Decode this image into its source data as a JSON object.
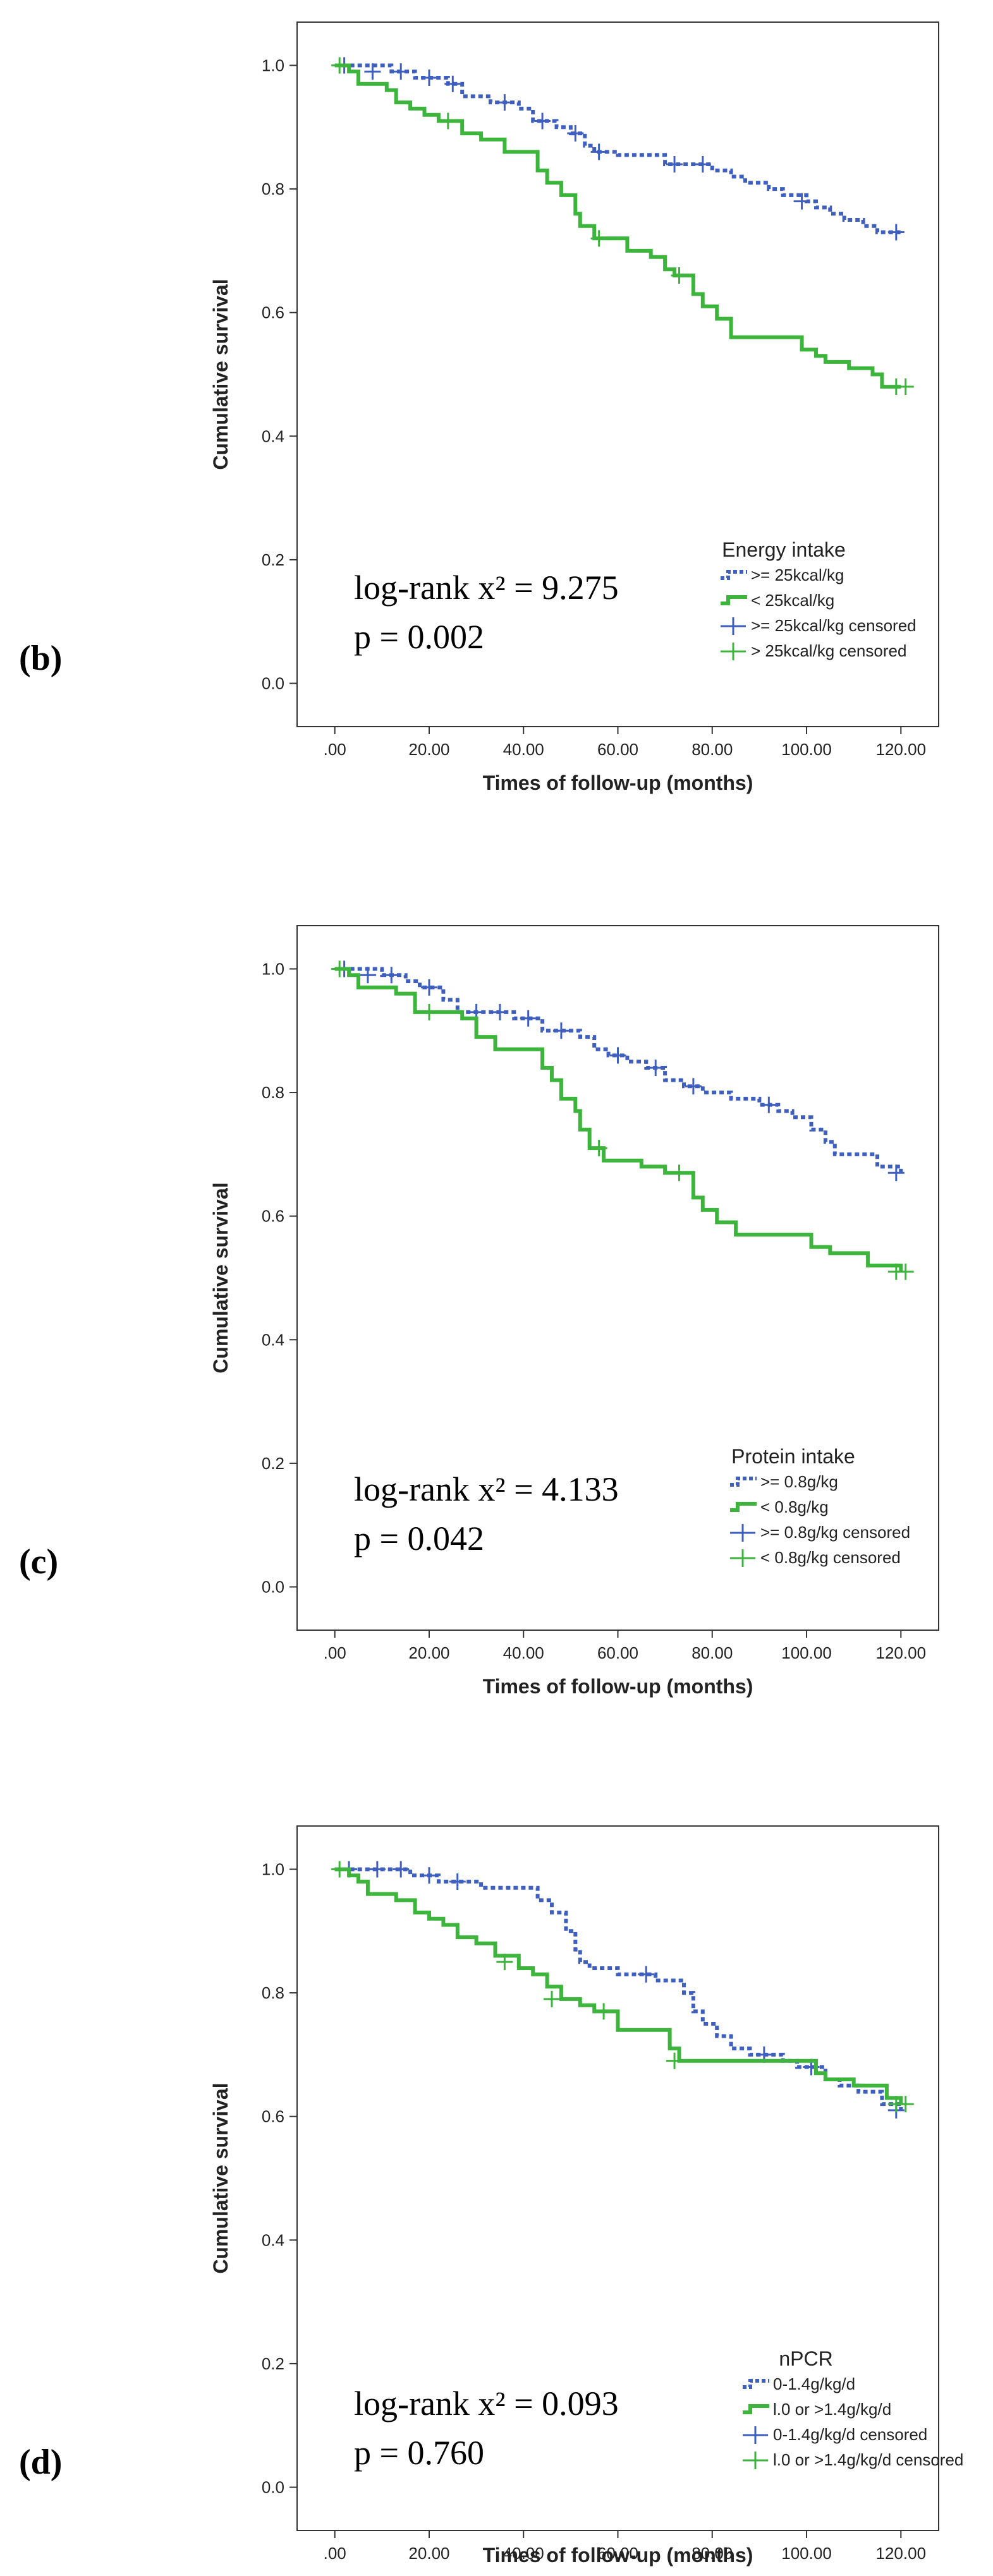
{
  "chart_data": [
    {
      "type": "line",
      "panel_label": "(b)",
      "xlabel": "Times of follow-up (months)",
      "ylabel": "Cumulative survival",
      "xlim": [
        -8,
        128
      ],
      "ylim": [
        -0.07,
        1.07
      ],
      "x_ticks": [
        0,
        20,
        40,
        60,
        80,
        100,
        120
      ],
      "x_tick_labels": [
        ".00",
        "20.00",
        "40.00",
        "60.00",
        "80.00",
        "100.00",
        "120.00"
      ],
      "y_ticks": [
        0,
        0.2,
        0.4,
        0.6,
        0.8,
        1.0
      ],
      "y_tick_labels": [
        "0.0",
        "0.2",
        "0.4",
        "0.6",
        "0.8",
        "1.0"
      ],
      "legend_title": "Energy intake",
      "legend": [
        ">= 25kcal/kg",
        "<  25kcal/kg",
        ">= 25kcal/kg censored",
        ">  25kcal/kg censored"
      ],
      "stat_line": "log-rank x² = 9.275",
      "p_line": "p = 0.002",
      "series": [
        {
          "name": ">= 25kcal/kg",
          "color": "#3f5fbf",
          "style": "dotted",
          "steps": [
            [
              0,
              1.0
            ],
            [
              12,
              0.99
            ],
            [
              17,
              0.98
            ],
            [
              24,
              0.97
            ],
            [
              27,
              0.95
            ],
            [
              33,
              0.94
            ],
            [
              39,
              0.93
            ],
            [
              42,
              0.91
            ],
            [
              47,
              0.9
            ],
            [
              50,
              0.89
            ],
            [
              53,
              0.87
            ],
            [
              55,
              0.86
            ],
            [
              60,
              0.855
            ],
            [
              70,
              0.84
            ],
            [
              80,
              0.83
            ],
            [
              84,
              0.82
            ],
            [
              87,
              0.81
            ],
            [
              92,
              0.8
            ],
            [
              95,
              0.79
            ],
            [
              100,
              0.78
            ],
            [
              102,
              0.77
            ],
            [
              105,
              0.76
            ],
            [
              108,
              0.75
            ],
            [
              112,
              0.74
            ],
            [
              115,
              0.73
            ],
            [
              120,
              0.73
            ]
          ],
          "censored": [
            [
              2,
              1.0
            ],
            [
              8,
              0.99
            ],
            [
              14,
              0.99
            ],
            [
              20,
              0.98
            ],
            [
              25,
              0.97
            ],
            [
              36,
              0.94
            ],
            [
              44,
              0.91
            ],
            [
              51,
              0.89
            ],
            [
              56,
              0.86
            ],
            [
              72,
              0.84
            ],
            [
              78,
              0.84
            ],
            [
              99,
              0.78
            ],
            [
              119,
              0.73
            ]
          ]
        },
        {
          "name": "<  25kcal/kg",
          "color": "#3db53d",
          "style": "solid",
          "steps": [
            [
              0,
              1.0
            ],
            [
              3,
              0.99
            ],
            [
              5,
              0.97
            ],
            [
              11,
              0.96
            ],
            [
              13,
              0.94
            ],
            [
              16,
              0.93
            ],
            [
              19,
              0.92
            ],
            [
              22,
              0.91
            ],
            [
              27,
              0.89
            ],
            [
              31,
              0.88
            ],
            [
              36,
              0.86
            ],
            [
              43,
              0.83
            ],
            [
              45,
              0.81
            ],
            [
              48,
              0.79
            ],
            [
              51,
              0.76
            ],
            [
              52,
              0.74
            ],
            [
              55,
              0.72
            ],
            [
              62,
              0.7
            ],
            [
              67,
              0.69
            ],
            [
              70,
              0.67
            ],
            [
              72,
              0.66
            ],
            [
              76,
              0.63
            ],
            [
              78,
              0.61
            ],
            [
              81,
              0.59
            ],
            [
              84,
              0.56
            ],
            [
              99,
              0.54
            ],
            [
              102,
              0.53
            ],
            [
              104,
              0.52
            ],
            [
              109,
              0.51
            ],
            [
              114,
              0.5
            ],
            [
              116,
              0.48
            ],
            [
              120,
              0.48
            ]
          ],
          "censored": [
            [
              1,
              1.0
            ],
            [
              24,
              0.91
            ],
            [
              56,
              0.72
            ],
            [
              73,
              0.66
            ],
            [
              119,
              0.48
            ],
            [
              121,
              0.48
            ]
          ]
        }
      ]
    },
    {
      "type": "line",
      "panel_label": "(c)",
      "xlabel": "Times of follow-up (months)",
      "ylabel": "Cumulative survival",
      "xlim": [
        -8,
        128
      ],
      "ylim": [
        -0.07,
        1.07
      ],
      "x_ticks": [
        0,
        20,
        40,
        60,
        80,
        100,
        120
      ],
      "x_tick_labels": [
        ".00",
        "20.00",
        "40.00",
        "60.00",
        "80.00",
        "100.00",
        "120.00"
      ],
      "y_ticks": [
        0,
        0.2,
        0.4,
        0.6,
        0.8,
        1.0
      ],
      "y_tick_labels": [
        "0.0",
        "0.2",
        "0.4",
        "0.6",
        "0.8",
        "1.0"
      ],
      "legend_title": "Protein intake",
      "legend": [
        ">= 0.8g/kg",
        "<  0.8g/kg",
        ">= 0.8g/kg censored",
        "<  0.8g/kg censored"
      ],
      "stat_line": "log-rank x² = 4.133",
      "p_line": "p = 0.042",
      "series": [
        {
          "name": ">= 0.8g/kg",
          "color": "#3f5fbf",
          "style": "dotted",
          "steps": [
            [
              0,
              1.0
            ],
            [
              10,
              0.99
            ],
            [
              15,
              0.98
            ],
            [
              18,
              0.97
            ],
            [
              23,
              0.95
            ],
            [
              26,
              0.93
            ],
            [
              38,
              0.92
            ],
            [
              44,
              0.9
            ],
            [
              52,
              0.89
            ],
            [
              55,
              0.87
            ],
            [
              58,
              0.86
            ],
            [
              62,
              0.85
            ],
            [
              66,
              0.84
            ],
            [
              70,
              0.82
            ],
            [
              74,
              0.81
            ],
            [
              78,
              0.8
            ],
            [
              84,
              0.79
            ],
            [
              90,
              0.78
            ],
            [
              94,
              0.77
            ],
            [
              97,
              0.76
            ],
            [
              101,
              0.74
            ],
            [
              104,
              0.72
            ],
            [
              106,
              0.7
            ],
            [
              115,
              0.68
            ],
            [
              120,
              0.67
            ]
          ],
          "censored": [
            [
              2,
              1.0
            ],
            [
              7,
              0.99
            ],
            [
              12,
              0.99
            ],
            [
              20,
              0.97
            ],
            [
              30,
              0.93
            ],
            [
              35,
              0.93
            ],
            [
              41,
              0.92
            ],
            [
              48,
              0.9
            ],
            [
              60,
              0.86
            ],
            [
              68,
              0.84
            ],
            [
              76,
              0.81
            ],
            [
              92,
              0.78
            ],
            [
              119,
              0.67
            ]
          ]
        },
        {
          "name": "<  0.8g/kg",
          "color": "#3db53d",
          "style": "solid",
          "steps": [
            [
              0,
              1.0
            ],
            [
              3,
              0.99
            ],
            [
              5,
              0.97
            ],
            [
              13,
              0.96
            ],
            [
              17,
              0.93
            ],
            [
              27,
              0.92
            ],
            [
              30,
              0.89
            ],
            [
              34,
              0.87
            ],
            [
              44,
              0.84
            ],
            [
              46,
              0.82
            ],
            [
              48,
              0.79
            ],
            [
              51,
              0.77
            ],
            [
              52,
              0.74
            ],
            [
              54,
              0.71
            ],
            [
              57,
              0.69
            ],
            [
              65,
              0.68
            ],
            [
              70,
              0.67
            ],
            [
              76,
              0.63
            ],
            [
              78,
              0.61
            ],
            [
              81,
              0.59
            ],
            [
              85,
              0.57
            ],
            [
              101,
              0.55
            ],
            [
              105,
              0.54
            ],
            [
              113,
              0.52
            ],
            [
              120,
              0.51
            ]
          ],
          "censored": [
            [
              1,
              1.0
            ],
            [
              20,
              0.93
            ],
            [
              56,
              0.71
            ],
            [
              73,
              0.67
            ],
            [
              119,
              0.51
            ],
            [
              121,
              0.51
            ]
          ]
        }
      ]
    },
    {
      "type": "line",
      "panel_label": "(d)",
      "xlabel": "Times of follow-up (months)",
      "ylabel": "Cumulative survival",
      "xlim": [
        -8,
        128
      ],
      "ylim": [
        -0.07,
        1.07
      ],
      "x_ticks": [
        0,
        20,
        40,
        60,
        80,
        100,
        120
      ],
      "x_tick_labels": [
        ".00",
        "20.00",
        "40.00",
        "60.00",
        "80.00",
        "100.00",
        "120.00"
      ],
      "y_ticks": [
        0,
        0.2,
        0.4,
        0.6,
        0.8,
        1.0
      ],
      "y_tick_labels": [
        "0.0",
        "0.2",
        "0.4",
        "0.6",
        "0.8",
        "1.0"
      ],
      "legend_title": "nPCR",
      "legend": [
        "0-1.4g/kg/d",
        "l.0 or >1.4g/kg/d",
        "0-1.4g/kg/d         censored",
        "l.0 or >1.4g/kg/d censored"
      ],
      "stat_line": "log-rank x² = 0.093",
      "p_line": "p = 0.760",
      "series": [
        {
          "name": "0-1.4g/kg/d",
          "color": "#3f5fbf",
          "style": "dotted",
          "steps": [
            [
              0,
              1.0
            ],
            [
              16,
              0.99
            ],
            [
              22,
              0.98
            ],
            [
              31,
              0.97
            ],
            [
              43,
              0.95
            ],
            [
              46,
              0.93
            ],
            [
              49,
              0.9
            ],
            [
              51,
              0.87
            ],
            [
              52,
              0.85
            ],
            [
              54,
              0.84
            ],
            [
              60,
              0.83
            ],
            [
              68,
              0.82
            ],
            [
              74,
              0.8
            ],
            [
              76,
              0.77
            ],
            [
              78,
              0.75
            ],
            [
              81,
              0.73
            ],
            [
              84,
              0.71
            ],
            [
              88,
              0.7
            ],
            [
              95,
              0.69
            ],
            [
              98,
              0.68
            ],
            [
              104,
              0.66
            ],
            [
              107,
              0.65
            ],
            [
              111,
              0.64
            ],
            [
              116,
              0.62
            ],
            [
              120,
              0.61
            ]
          ],
          "censored": [
            [
              3,
              1.0
            ],
            [
              9,
              1.0
            ],
            [
              14,
              1.0
            ],
            [
              20,
              0.99
            ],
            [
              26,
              0.98
            ],
            [
              66,
              0.83
            ],
            [
              91,
              0.7
            ],
            [
              101,
              0.68
            ],
            [
              119,
              0.61
            ]
          ]
        },
        {
          "name": "l.0 or >1.4g/kg/d",
          "color": "#3db53d",
          "style": "solid",
          "steps": [
            [
              0,
              1.0
            ],
            [
              3,
              0.99
            ],
            [
              5,
              0.98
            ],
            [
              7,
              0.96
            ],
            [
              13,
              0.95
            ],
            [
              17,
              0.93
            ],
            [
              20,
              0.92
            ],
            [
              23,
              0.91
            ],
            [
              26,
              0.89
            ],
            [
              30,
              0.88
            ],
            [
              34,
              0.86
            ],
            [
              39,
              0.84
            ],
            [
              42,
              0.83
            ],
            [
              45,
              0.81
            ],
            [
              48,
              0.79
            ],
            [
              52,
              0.78
            ],
            [
              55,
              0.77
            ],
            [
              60,
              0.74
            ],
            [
              71,
              0.71
            ],
            [
              73,
              0.69
            ],
            [
              102,
              0.67
            ],
            [
              104,
              0.66
            ],
            [
              110,
              0.65
            ],
            [
              117,
              0.63
            ],
            [
              120,
              0.62
            ]
          ],
          "censored": [
            [
              1,
              1.0
            ],
            [
              36,
              0.85
            ],
            [
              46,
              0.79
            ],
            [
              57,
              0.77
            ],
            [
              72,
              0.69
            ],
            [
              119,
              0.62
            ],
            [
              121,
              0.62
            ]
          ]
        }
      ]
    }
  ]
}
